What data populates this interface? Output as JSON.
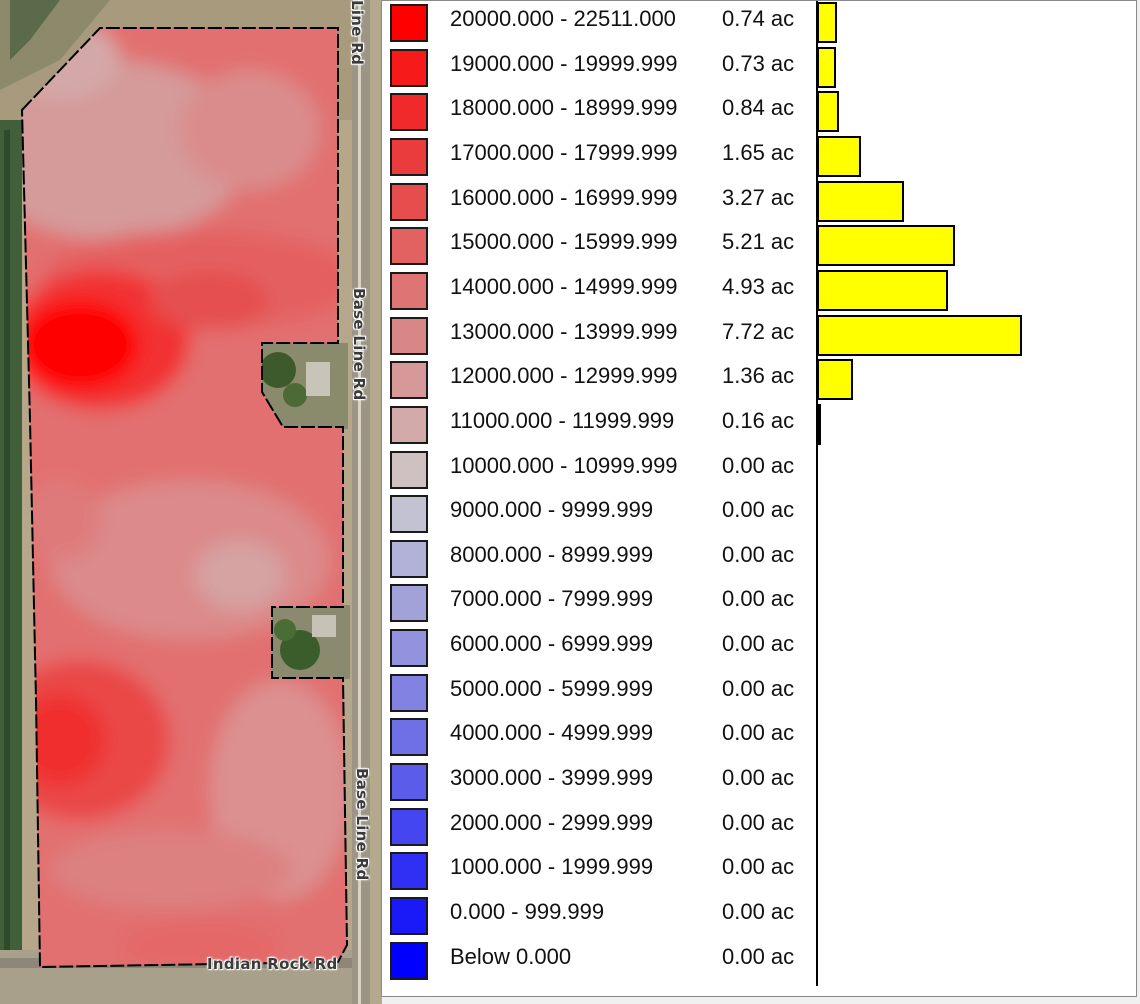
{
  "map": {
    "roads": {
      "top_label": "Line Rd",
      "mid_label": "Base Line Rd",
      "low_label": "Base Line Rd",
      "bottom_label": "Indian Rock Rd"
    }
  },
  "legend": {
    "unit": "ac",
    "classes": [
      {
        "range": "20000.000 - 22511.000",
        "area": "0.74 ac",
        "acres": 0.74,
        "color": "#ff0000"
      },
      {
        "range": "19000.000 - 19999.999",
        "area": "0.73 ac",
        "acres": 0.73,
        "color": "#f61a1a"
      },
      {
        "range": "18000.000 - 18999.999",
        "area": "0.84 ac",
        "acres": 0.84,
        "color": "#f02a2a"
      },
      {
        "range": "17000.000 - 17999.999",
        "area": "1.65 ac",
        "acres": 1.65,
        "color": "#ea3c3c"
      },
      {
        "range": "16000.000 - 16999.999",
        "area": "3.27 ac",
        "acres": 3.27,
        "color": "#e64e4e"
      },
      {
        "range": "15000.000 - 15999.999",
        "area": "5.21 ac",
        "acres": 5.21,
        "color": "#e26262"
      },
      {
        "range": "14000.000 - 14999.999",
        "area": "4.93 ac",
        "acres": 4.93,
        "color": "#de7474"
      },
      {
        "range": "13000.000 - 13999.999",
        "area": "7.72 ac",
        "acres": 7.72,
        "color": "#d98686"
      },
      {
        "range": "12000.000 - 12999.999",
        "area": "1.36 ac",
        "acres": 1.36,
        "color": "#d69898"
      },
      {
        "range": "11000.000 - 11999.999",
        "area": "0.16 ac",
        "acres": 0.16,
        "color": "#d2aaaa"
      },
      {
        "range": "10000.000 - 10999.999",
        "area": "0.00 ac",
        "acres": 0.0,
        "color": "#cfc0c2"
      },
      {
        "range": "9000.000 - 9999.999",
        "area": "0.00 ac",
        "acres": 0.0,
        "color": "#c2c2d2"
      },
      {
        "range": "8000.000 - 8999.999",
        "area": "0.00 ac",
        "acres": 0.0,
        "color": "#b2b2d9"
      },
      {
        "range": "7000.000 - 7999.999",
        "area": "0.00 ac",
        "acres": 0.0,
        "color": "#a2a2d9"
      },
      {
        "range": "6000.000 - 6999.999",
        "area": "0.00 ac",
        "acres": 0.0,
        "color": "#9292de"
      },
      {
        "range": "5000.000 - 5999.999",
        "area": "0.00 ac",
        "acres": 0.0,
        "color": "#8282e2"
      },
      {
        "range": "4000.000 - 4999.999",
        "area": "0.00 ac",
        "acres": 0.0,
        "color": "#7070e6"
      },
      {
        "range": "3000.000 - 3999.999",
        "area": "0.00 ac",
        "acres": 0.0,
        "color": "#5c5cea"
      },
      {
        "range": "2000.000 - 2999.999",
        "area": "0.00 ac",
        "acres": 0.0,
        "color": "#4646f0"
      },
      {
        "range": "1000.000 - 1999.999",
        "area": "0.00 ac",
        "acres": 0.0,
        "color": "#3030f4"
      },
      {
        "range": "0.000 - 999.999",
        "area": "0.00 ac",
        "acres": 0.0,
        "color": "#1a1af8"
      },
      {
        "range": "Below 0.000",
        "area": "0.00 ac",
        "acres": 0.0,
        "color": "#0000ff"
      }
    ]
  }
}
